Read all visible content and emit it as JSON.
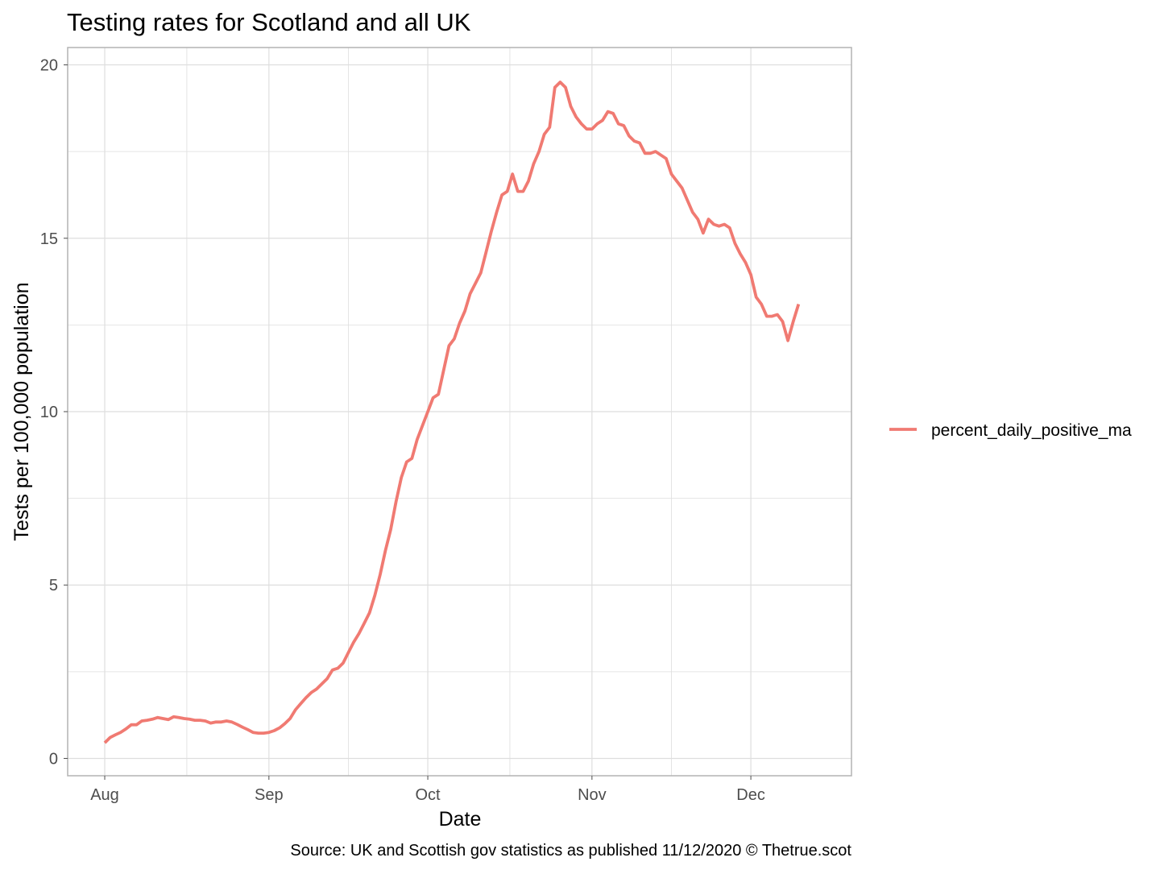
{
  "chart_data": {
    "type": "line",
    "title": "Testing rates for Scotland and all UK",
    "xlabel": "Date",
    "ylabel": "Tests per 100,000 population",
    "caption": "Source: UK and Scottish gov statistics as published 11/12/2020  © Thetrue.scot",
    "xlim": [
      "2020-07-25",
      "2020-12-20"
    ],
    "ylim": [
      -0.5,
      20.5
    ],
    "x_ticks": [
      {
        "label": "Aug",
        "date": "2020-08-01"
      },
      {
        "label": "Sep",
        "date": "2020-09-01"
      },
      {
        "label": "Oct",
        "date": "2020-10-01"
      },
      {
        "label": "Nov",
        "date": "2020-11-01"
      },
      {
        "label": "Dec",
        "date": "2020-12-01"
      }
    ],
    "y_ticks": [
      0,
      5,
      10,
      15,
      20
    ],
    "grid": true,
    "legend_position": "right",
    "colors": {
      "series": "#f07a72",
      "grid": "#dedede",
      "panel_border": "#b3b3b3"
    },
    "series": [
      {
        "name": "percent_daily_positive_ma",
        "points": [
          [
            "2020-08-01",
            0.45
          ],
          [
            "2020-08-02",
            0.6
          ],
          [
            "2020-08-03",
            0.68
          ],
          [
            "2020-08-04",
            0.75
          ],
          [
            "2020-08-05",
            0.85
          ],
          [
            "2020-08-06",
            0.97
          ],
          [
            "2020-08-07",
            0.97
          ],
          [
            "2020-08-08",
            1.08
          ],
          [
            "2020-08-09",
            1.1
          ],
          [
            "2020-08-10",
            1.13
          ],
          [
            "2020-08-11",
            1.18
          ],
          [
            "2020-08-12",
            1.15
          ],
          [
            "2020-08-13",
            1.12
          ],
          [
            "2020-08-14",
            1.2
          ],
          [
            "2020-08-15",
            1.18
          ],
          [
            "2020-08-16",
            1.15
          ],
          [
            "2020-08-17",
            1.13
          ],
          [
            "2020-08-18",
            1.1
          ],
          [
            "2020-08-19",
            1.1
          ],
          [
            "2020-08-20",
            1.08
          ],
          [
            "2020-08-21",
            1.02
          ],
          [
            "2020-08-22",
            1.05
          ],
          [
            "2020-08-23",
            1.05
          ],
          [
            "2020-08-24",
            1.08
          ],
          [
            "2020-08-25",
            1.05
          ],
          [
            "2020-08-26",
            0.98
          ],
          [
            "2020-08-27",
            0.9
          ],
          [
            "2020-08-28",
            0.83
          ],
          [
            "2020-08-29",
            0.75
          ],
          [
            "2020-08-30",
            0.73
          ],
          [
            "2020-08-31",
            0.73
          ],
          [
            "2020-09-01",
            0.75
          ],
          [
            "2020-09-02",
            0.8
          ],
          [
            "2020-09-03",
            0.88
          ],
          [
            "2020-09-04",
            1.0
          ],
          [
            "2020-09-05",
            1.15
          ],
          [
            "2020-09-06",
            1.4
          ],
          [
            "2020-09-07",
            1.58
          ],
          [
            "2020-09-08",
            1.75
          ],
          [
            "2020-09-09",
            1.9
          ],
          [
            "2020-09-10",
            2.0
          ],
          [
            "2020-09-11",
            2.15
          ],
          [
            "2020-09-12",
            2.3
          ],
          [
            "2020-09-13",
            2.55
          ],
          [
            "2020-09-14",
            2.6
          ],
          [
            "2020-09-15",
            2.75
          ],
          [
            "2020-09-16",
            3.05
          ],
          [
            "2020-09-17",
            3.35
          ],
          [
            "2020-09-18",
            3.6
          ],
          [
            "2020-09-19",
            3.9
          ],
          [
            "2020-09-20",
            4.2
          ],
          [
            "2020-09-21",
            4.7
          ],
          [
            "2020-09-22",
            5.3
          ],
          [
            "2020-09-23",
            6.0
          ],
          [
            "2020-09-24",
            6.6
          ],
          [
            "2020-09-25",
            7.4
          ],
          [
            "2020-09-26",
            8.1
          ],
          [
            "2020-09-27",
            8.55
          ],
          [
            "2020-09-28",
            8.65
          ],
          [
            "2020-09-29",
            9.2
          ],
          [
            "2020-09-30",
            9.6
          ],
          [
            "2020-10-01",
            10.0
          ],
          [
            "2020-10-02",
            10.4
          ],
          [
            "2020-10-03",
            10.5
          ],
          [
            "2020-10-04",
            11.2
          ],
          [
            "2020-10-05",
            11.9
          ],
          [
            "2020-10-06",
            12.1
          ],
          [
            "2020-10-07",
            12.55
          ],
          [
            "2020-10-08",
            12.9
          ],
          [
            "2020-10-09",
            13.4
          ],
          [
            "2020-10-10",
            13.7
          ],
          [
            "2020-10-11",
            14.0
          ],
          [
            "2020-10-12",
            14.6
          ],
          [
            "2020-10-13",
            15.2
          ],
          [
            "2020-10-14",
            15.75
          ],
          [
            "2020-10-15",
            16.25
          ],
          [
            "2020-10-16",
            16.35
          ],
          [
            "2020-10-17",
            16.85
          ],
          [
            "2020-10-18",
            16.35
          ],
          [
            "2020-10-19",
            16.35
          ],
          [
            "2020-10-20",
            16.65
          ],
          [
            "2020-10-21",
            17.15
          ],
          [
            "2020-10-22",
            17.5
          ],
          [
            "2020-10-23",
            18.0
          ],
          [
            "2020-10-24",
            18.2
          ],
          [
            "2020-10-25",
            19.35
          ],
          [
            "2020-10-26",
            19.5
          ],
          [
            "2020-10-27",
            19.35
          ],
          [
            "2020-10-28",
            18.8
          ],
          [
            "2020-10-29",
            18.5
          ],
          [
            "2020-10-30",
            18.3
          ],
          [
            "2020-10-31",
            18.15
          ],
          [
            "2020-11-01",
            18.15
          ],
          [
            "2020-11-02",
            18.3
          ],
          [
            "2020-11-03",
            18.4
          ],
          [
            "2020-11-04",
            18.65
          ],
          [
            "2020-11-05",
            18.6
          ],
          [
            "2020-11-06",
            18.3
          ],
          [
            "2020-11-07",
            18.25
          ],
          [
            "2020-11-08",
            17.95
          ],
          [
            "2020-11-09",
            17.8
          ],
          [
            "2020-11-10",
            17.75
          ],
          [
            "2020-11-11",
            17.45
          ],
          [
            "2020-11-12",
            17.45
          ],
          [
            "2020-11-13",
            17.5
          ],
          [
            "2020-11-14",
            17.4
          ],
          [
            "2020-11-15",
            17.3
          ],
          [
            "2020-11-16",
            16.85
          ],
          [
            "2020-11-17",
            16.65
          ],
          [
            "2020-11-18",
            16.45
          ],
          [
            "2020-11-19",
            16.1
          ],
          [
            "2020-11-20",
            15.75
          ],
          [
            "2020-11-21",
            15.55
          ],
          [
            "2020-11-22",
            15.15
          ],
          [
            "2020-11-23",
            15.55
          ],
          [
            "2020-11-24",
            15.4
          ],
          [
            "2020-11-25",
            15.35
          ],
          [
            "2020-11-26",
            15.4
          ],
          [
            "2020-11-27",
            15.3
          ],
          [
            "2020-11-28",
            14.85
          ],
          [
            "2020-11-29",
            14.55
          ],
          [
            "2020-11-30",
            14.3
          ],
          [
            "2020-12-01",
            13.95
          ],
          [
            "2020-12-02",
            13.3
          ],
          [
            "2020-12-03",
            13.1
          ],
          [
            "2020-12-04",
            12.75
          ],
          [
            "2020-12-05",
            12.75
          ],
          [
            "2020-12-06",
            12.8
          ],
          [
            "2020-12-07",
            12.6
          ],
          [
            "2020-12-08",
            12.05
          ],
          [
            "2020-12-09",
            12.6
          ],
          [
            "2020-12-10",
            13.1
          ]
        ]
      }
    ]
  }
}
